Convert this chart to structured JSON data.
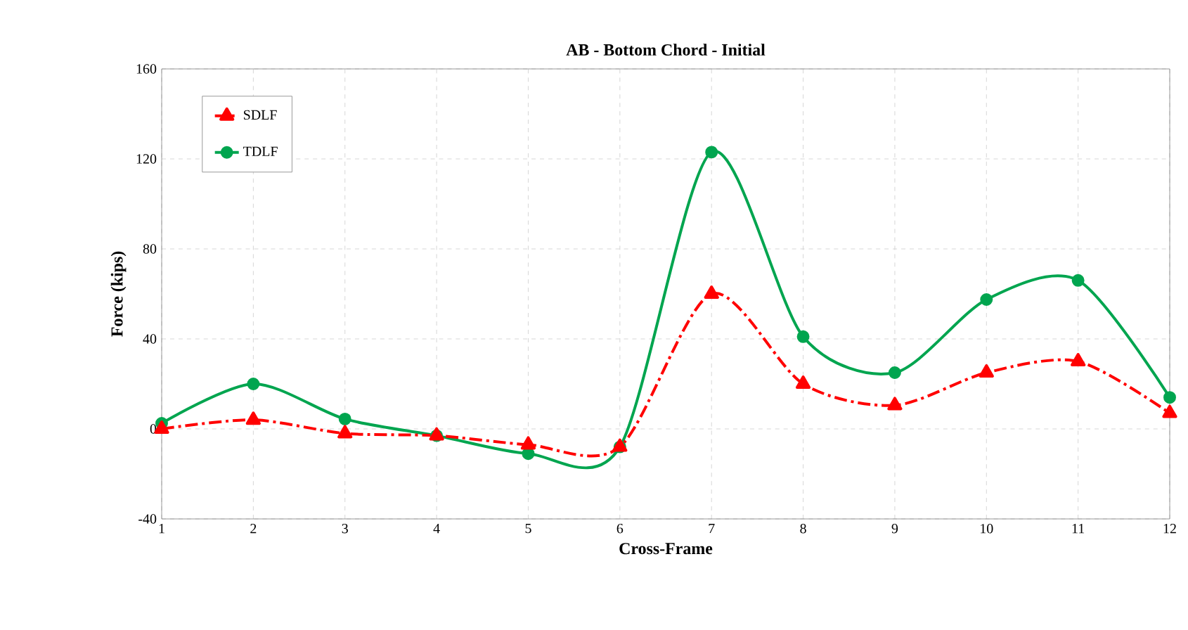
{
  "chart_data": {
    "type": "line",
    "title": "AB - Bottom Chord - Initial",
    "xlabel": "Cross-Frame",
    "ylabel": "Force (kips)",
    "x": [
      1,
      2,
      3,
      4,
      5,
      6,
      7,
      8,
      9,
      10,
      11,
      12
    ],
    "xlim": [
      1,
      12
    ],
    "xticks": [
      1,
      2,
      3,
      4,
      5,
      6,
      7,
      8,
      9,
      10,
      11,
      12
    ],
    "ylim": [
      -40,
      160
    ],
    "yticks": [
      -40,
      0,
      40,
      80,
      120,
      160
    ],
    "grid": true,
    "legend": "top left",
    "series": [
      {
        "name": "SDLF",
        "color": "#ff0000",
        "marker": "triangle",
        "line_style": "dashed",
        "values": [
          0,
          4,
          -2,
          -3,
          -7,
          -8,
          60,
          20,
          10.5,
          25,
          30,
          7
        ]
      },
      {
        "name": "TDLF",
        "color": "#00a54f",
        "marker": "circle",
        "line_style": "solid",
        "values": [
          2.5,
          20,
          4.4,
          -3,
          -11,
          -8,
          123,
          41,
          25,
          57.5,
          66,
          14
        ]
      }
    ]
  }
}
